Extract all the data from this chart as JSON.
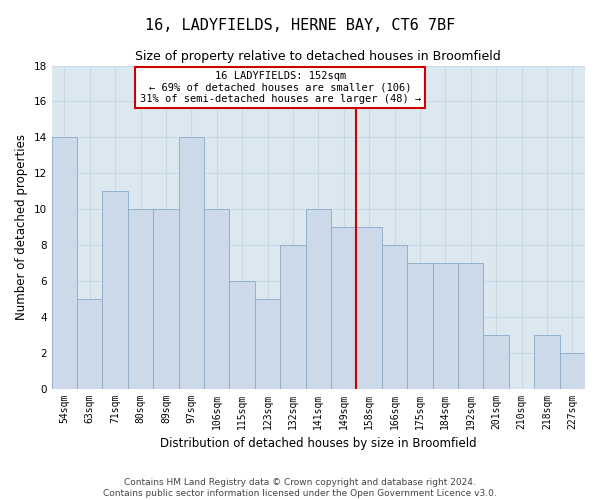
{
  "title": "16, LADYFIELDS, HERNE BAY, CT6 7BF",
  "subtitle": "Size of property relative to detached houses in Broomfield",
  "xlabel": "Distribution of detached houses by size in Broomfield",
  "ylabel": "Number of detached properties",
  "footnote1": "Contains HM Land Registry data © Crown copyright and database right 2024.",
  "footnote2": "Contains public sector information licensed under the Open Government Licence v3.0.",
  "annotation_line1": "16 LADYFIELDS: 152sqm",
  "annotation_line2": "← 69% of detached houses are smaller (106)",
  "annotation_line3": "31% of semi-detached houses are larger (48) →",
  "bar_labels": [
    "54sqm",
    "63sqm",
    "71sqm",
    "80sqm",
    "89sqm",
    "97sqm",
    "106sqm",
    "115sqm",
    "123sqm",
    "132sqm",
    "141sqm",
    "149sqm",
    "158sqm",
    "166sqm",
    "175sqm",
    "184sqm",
    "192sqm",
    "201sqm",
    "210sqm",
    "218sqm",
    "227sqm"
  ],
  "bar_values": [
    14,
    5,
    11,
    10,
    10,
    14,
    10,
    6,
    5,
    8,
    10,
    9,
    9,
    8,
    7,
    7,
    7,
    3,
    0,
    3,
    2
  ],
  "bar_color": "#ccd9e8",
  "bar_edge_color": "#8aaac8",
  "grid_color": "#c8d8e8",
  "background_color": "#dce8f0",
  "red_line_x": 11.5,
  "red_line_color": "#cc0000",
  "annotation_box_color": "#cc0000",
  "ylim": [
    0,
    18
  ],
  "yticks": [
    0,
    2,
    4,
    6,
    8,
    10,
    12,
    14,
    16,
    18
  ],
  "title_fontsize": 11,
  "subtitle_fontsize": 9,
  "ylabel_fontsize": 8.5,
  "xlabel_fontsize": 8.5,
  "tick_fontsize": 7,
  "annotation_fontsize": 7.5,
  "footnote_fontsize": 6.5
}
